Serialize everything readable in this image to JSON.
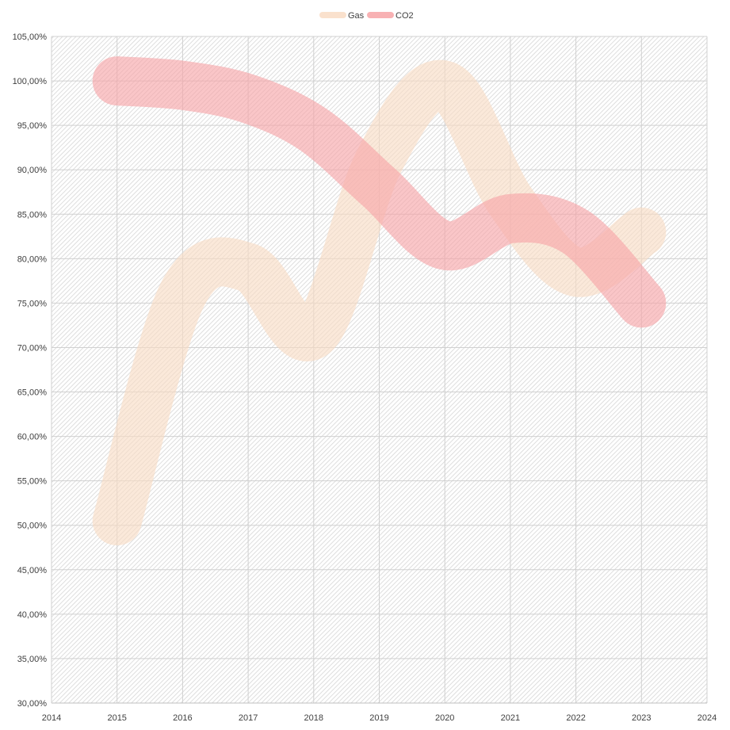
{
  "chart_data": {
    "type": "line",
    "title": "",
    "xlabel": "",
    "ylabel": "",
    "x": [
      2015,
      2016,
      2017,
      2018,
      2019,
      2020,
      2021,
      2022,
      2023
    ],
    "series": [
      {
        "name": "Gas",
        "color": "#f9dcc4",
        "x": [
          2015,
          2016,
          2017,
          2018,
          2019,
          2020,
          2021,
          2022,
          2023
        ],
        "values": [
          50.5,
          76.0,
          79.0,
          71.5,
          91.0,
          99.5,
          86.5,
          78.5,
          83.0
        ]
      },
      {
        "name": "CO2",
        "color": "#f7a3a6",
        "x": [
          2015,
          2016,
          2017,
          2018,
          2019,
          2020,
          2021,
          2022,
          2023
        ],
        "values": [
          100.0,
          99.5,
          98.0,
          94.5,
          88.0,
          81.5,
          84.5,
          83.0,
          75.0
        ]
      }
    ],
    "xlim": [
      2014,
      2024
    ],
    "ylim": [
      30,
      105
    ],
    "x_ticks": [
      "2014",
      "2015",
      "2016",
      "2017",
      "2018",
      "2019",
      "2020",
      "2021",
      "2022",
      "2023",
      "2024"
    ],
    "y_ticks": [
      "30,00%",
      "35,00%",
      "40,00%",
      "45,00%",
      "50,00%",
      "55,00%",
      "60,00%",
      "65,00%",
      "70,00%",
      "75,00%",
      "80,00%",
      "85,00%",
      "90,00%",
      "95,00%",
      "100,00%",
      "105,00%"
    ],
    "grid": true,
    "legend": "top-center",
    "line_style": "smooth, very thick, semi-transparent",
    "plot_background": "hatched light gray"
  }
}
